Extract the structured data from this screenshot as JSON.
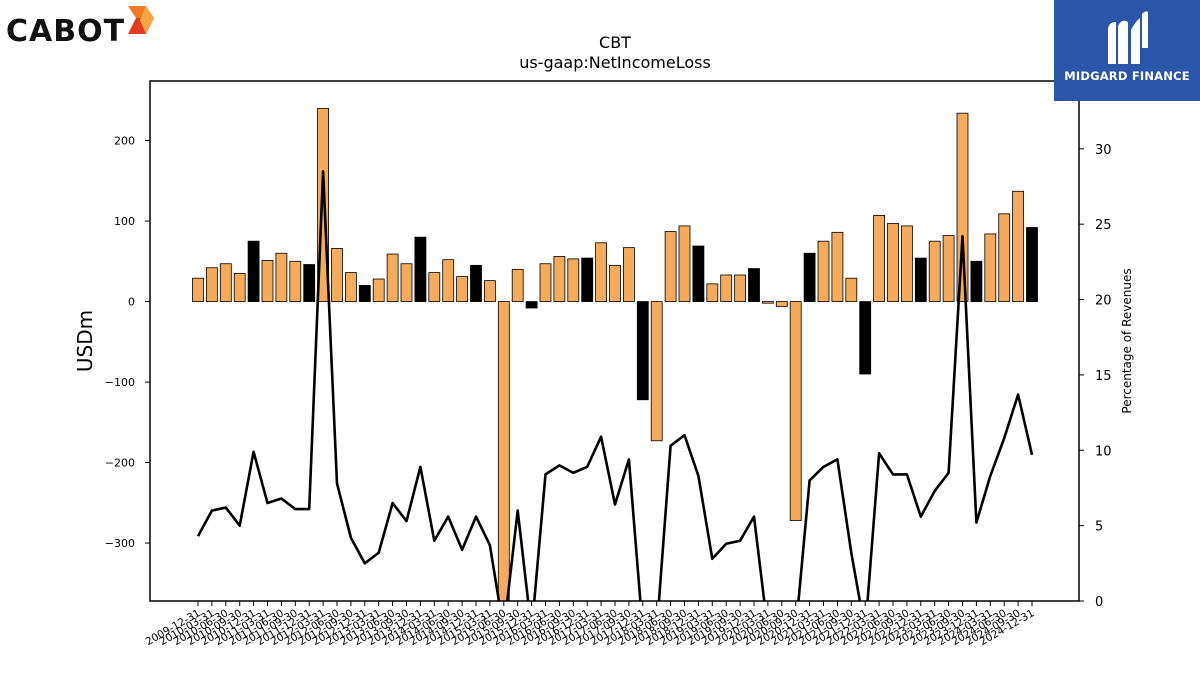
{
  "logos": {
    "left_text": "CABOT",
    "right_text": "MIDGARD FINANCE"
  },
  "colors": {
    "positive_bar": "#f5ab5c",
    "highlight_bar": "#000000",
    "line": "#000000"
  },
  "chart_data": {
    "type": "bar",
    "title": "CBT",
    "subtitle": "us-gaap:NetIncomeLoss",
    "ylabel": "USDm",
    "y2label": "Percentage of Revenues",
    "ylim": [
      -372,
      274
    ],
    "y2lim": [
      0,
      34.5
    ],
    "yticks": [
      -300,
      -200,
      -100,
      0,
      100,
      200
    ],
    "y2ticks": [
      0,
      5,
      10,
      15,
      20,
      25,
      30
    ],
    "categories": [
      "2009-12-31",
      "2010-03-31",
      "2010-06-30",
      "2010-09-30",
      "2010-12-31",
      "2011-03-31",
      "2011-06-30",
      "2011-09-30",
      "2011-12-31",
      "2012-03-31",
      "2012-06-30",
      "2012-09-30",
      "2012-12-31",
      "2013-03-31",
      "2013-06-30",
      "2013-09-30",
      "2013-12-31",
      "2014-03-31",
      "2014-06-30",
      "2014-09-30",
      "2014-12-31",
      "2015-03-31",
      "2015-06-30",
      "2015-09-30",
      "2015-12-31",
      "2016-03-31",
      "2016-06-30",
      "2016-09-30",
      "2016-12-31",
      "2017-03-31",
      "2017-06-30",
      "2017-09-30",
      "2017-12-31",
      "2018-03-31",
      "2018-06-30",
      "2018-09-30",
      "2018-12-31",
      "2019-03-31",
      "2019-06-30",
      "2019-09-30",
      "2019-12-31",
      "2020-03-31",
      "2020-06-30",
      "2020-09-30",
      "2020-12-31",
      "2021-03-31",
      "2021-06-30",
      "2021-09-30",
      "2021-12-31",
      "2022-03-31",
      "2022-06-30",
      "2022-09-30",
      "2022-12-31",
      "2023-03-31",
      "2023-06-30",
      "2023-09-30",
      "2023-12-31",
      "2024-03-31",
      "2024-06-30",
      "2024-09-30",
      "2024-12-31"
    ],
    "series": [
      {
        "type": "bar",
        "axis": "left",
        "values": [
          29,
          42,
          47,
          35,
          75,
          51,
          60,
          50,
          46,
          240,
          66,
          36,
          20,
          28,
          59,
          47,
          80,
          36,
          52,
          31,
          45,
          26,
          -380,
          40,
          -8,
          47,
          56,
          53,
          54,
          73,
          45,
          67,
          -122,
          -173,
          87,
          94,
          69,
          22,
          33,
          33,
          41,
          -2,
          -6,
          -272,
          60,
          75,
          86,
          29,
          -90,
          107,
          97,
          94,
          54,
          75,
          82,
          234,
          50,
          84,
          109,
          137,
          92
        ],
        "highlight": [
          0,
          0,
          0,
          0,
          1,
          0,
          0,
          0,
          1,
          0,
          0,
          0,
          1,
          0,
          0,
          0,
          1,
          0,
          0,
          0,
          1,
          0,
          0,
          0,
          1,
          0,
          0,
          0,
          1,
          0,
          0,
          0,
          1,
          0,
          0,
          0,
          1,
          0,
          0,
          0,
          1,
          0,
          0,
          0,
          1,
          0,
          0,
          0,
          1,
          0,
          0,
          0,
          1,
          0,
          0,
          0,
          1,
          0,
          0,
          0,
          1
        ]
      },
      {
        "type": "line",
        "axis": "right",
        "values": [
          4.3,
          6.0,
          6.2,
          5.0,
          9.9,
          6.5,
          6.8,
          6.1,
          6.1,
          28.5,
          7.8,
          4.2,
          2.5,
          3.2,
          6.5,
          5.3,
          8.9,
          4.0,
          5.6,
          3.4,
          5.6,
          3.7,
          -2.0,
          6.0,
          -2.0,
          8.4,
          9.0,
          8.5,
          8.9,
          10.9,
          6.4,
          9.4,
          -2.0,
          -2.0,
          10.3,
          11.0,
          8.3,
          2.8,
          3.8,
          4.0,
          5.6,
          -2.0,
          -2.0,
          -2.0,
          8.0,
          8.9,
          9.4,
          3.2,
          -2.0,
          9.8,
          8.4,
          8.4,
          5.6,
          7.3,
          8.5,
          24.2,
          5.2,
          8.3,
          10.8,
          13.7,
          9.7
        ]
      }
    ]
  }
}
